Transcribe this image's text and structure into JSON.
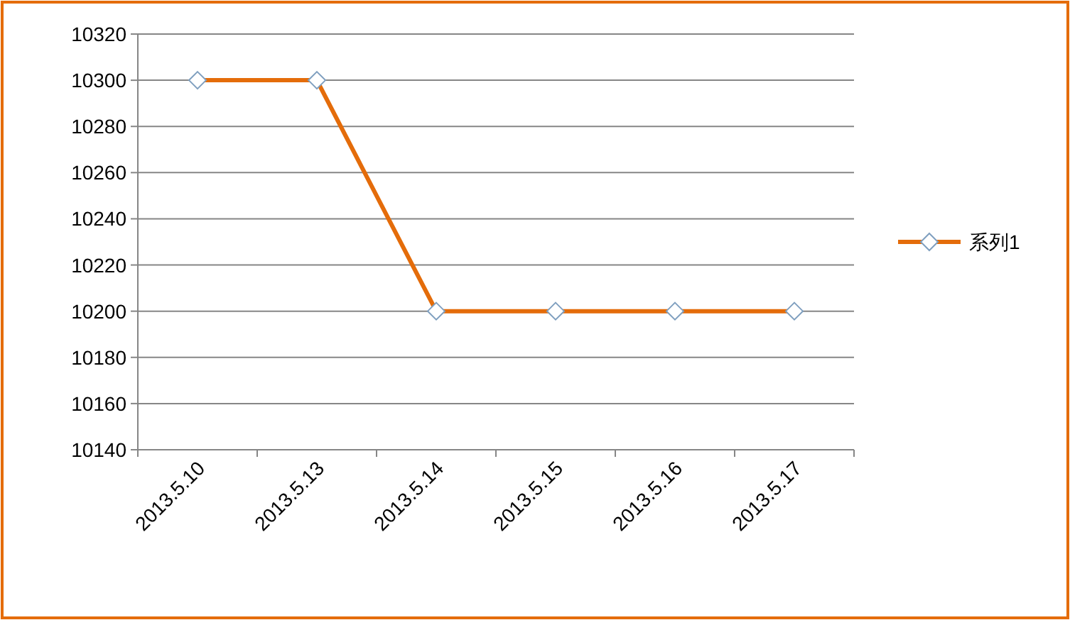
{
  "chart_data": {
    "type": "line",
    "categories": [
      "2013.5.10",
      "2013.5.13",
      "2013.5.14",
      "2013.5.15",
      "2013.5.16",
      "2013.5.17"
    ],
    "series": [
      {
        "name": "系列1",
        "color": "#e46c0a",
        "values": [
          10300,
          10300,
          10200,
          10200,
          10200,
          10200
        ]
      }
    ],
    "ylim": [
      10140,
      10320
    ],
    "yticks": [
      10140,
      10160,
      10180,
      10200,
      10220,
      10240,
      10260,
      10280,
      10300,
      10320
    ],
    "grid": "y",
    "legend": "right",
    "marker": "diamond",
    "line_style": "solid"
  }
}
